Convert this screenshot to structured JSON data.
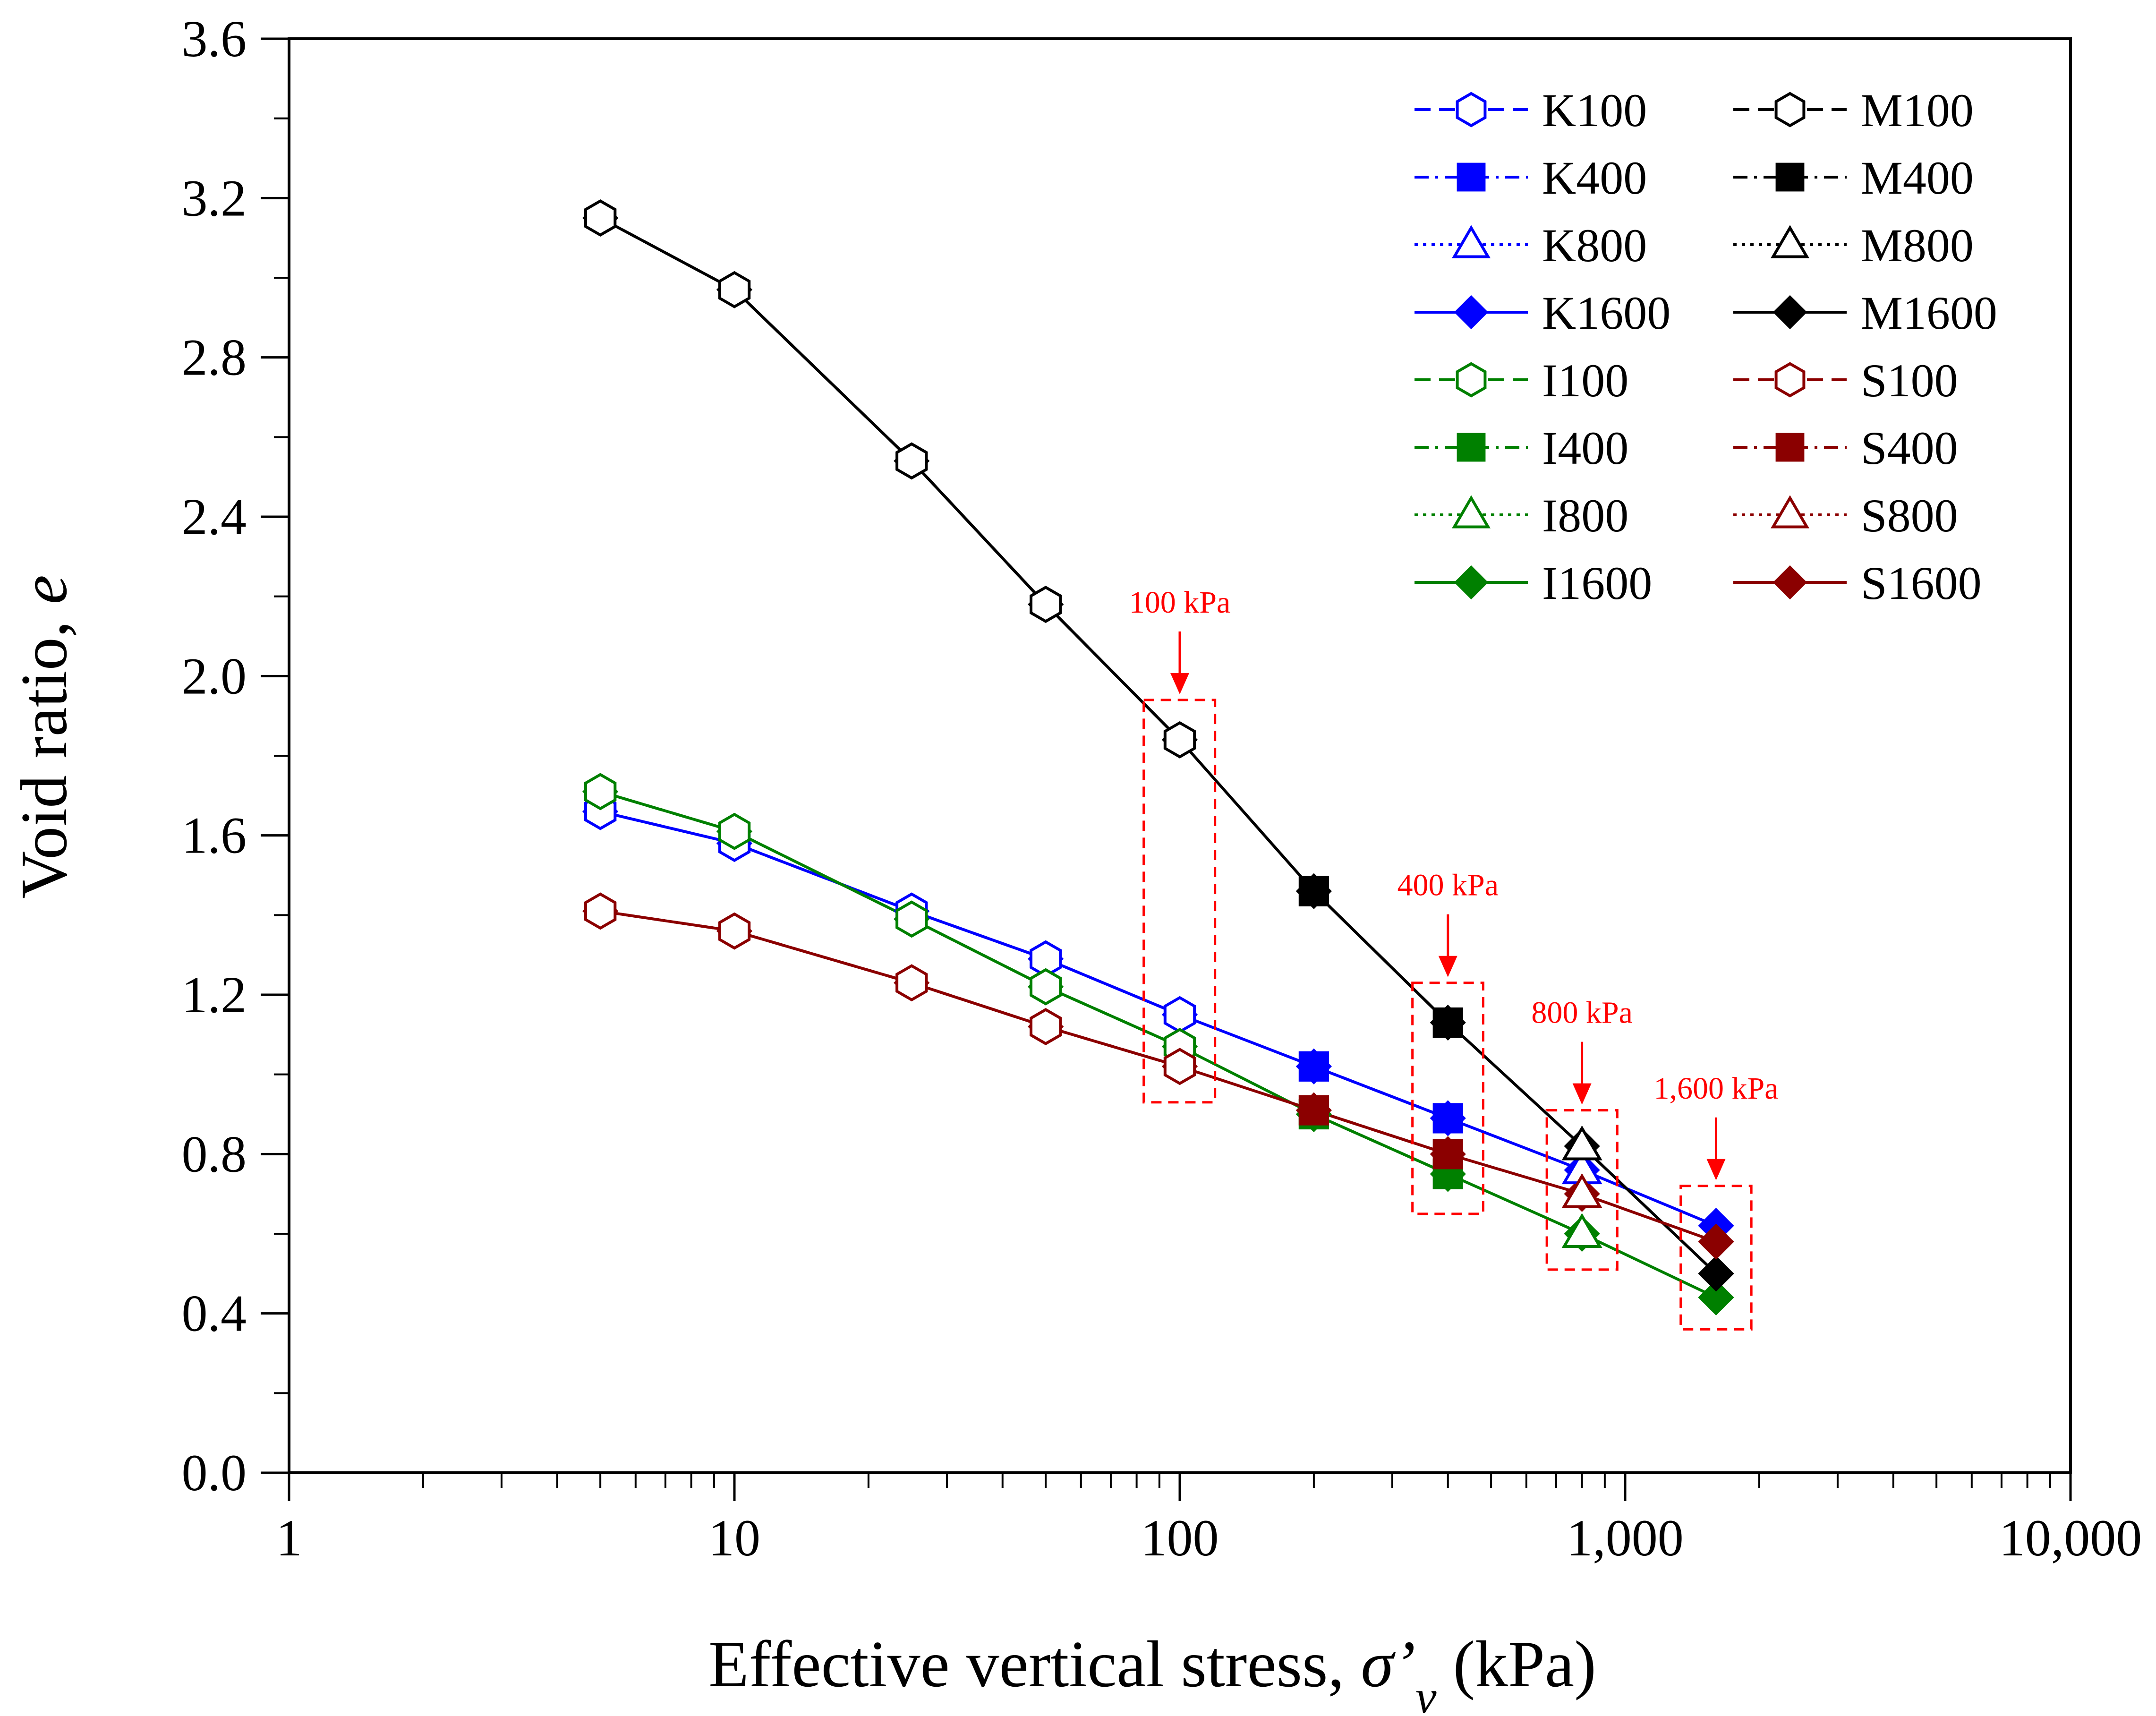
{
  "chart_data": {
    "type": "line",
    "title": "",
    "xlabel_main": "Effective vertical stress, ",
    "xlabel_symbol": "σ’",
    "xlabel_sub": "v",
    "xlabel_unit": " (kPa)",
    "ylabel_main": "Void ratio, ",
    "ylabel_symbol": "e",
    "xscale": "log",
    "xlim": [
      1,
      10000
    ],
    "ylim": [
      0.0,
      3.6
    ],
    "x_tick_values": [
      1,
      10,
      100,
      1000,
      10000
    ],
    "x_tick_labels": [
      "1",
      "10",
      "100",
      "1,000",
      "10,000"
    ],
    "y_tick_values": [
      0.0,
      0.4,
      0.8,
      1.2,
      1.6,
      2.0,
      2.4,
      2.8,
      3.2,
      3.6
    ],
    "y_tick_labels": [
      "0.0",
      "0.4",
      "0.8",
      "1.2",
      "1.6",
      "2.0",
      "2.4",
      "2.8",
      "3.2",
      "3.6"
    ],
    "grid": false,
    "legend_position": "top-right",
    "series": [
      {
        "name": "K100",
        "color": "#0000ff",
        "dash": "dash",
        "marker": "hexagon-open",
        "x": [
          5,
          10,
          25,
          50,
          100
        ],
        "y": [
          1.66,
          1.58,
          1.41,
          1.29,
          1.15
        ]
      },
      {
        "name": "K400",
        "color": "#0000ff",
        "dash": "dashdot",
        "marker": "square-filled",
        "x": [
          200,
          400
        ],
        "y": [
          1.02,
          0.89
        ]
      },
      {
        "name": "K800",
        "color": "#0000ff",
        "dash": "dot",
        "marker": "triangle-open",
        "x": [
          800
        ],
        "y": [
          0.76
        ]
      },
      {
        "name": "K1600",
        "color": "#0000ff",
        "dash": "solid",
        "marker": "diamond-filled",
        "x": [
          5,
          10,
          25,
          50,
          100,
          200,
          400,
          800,
          1600
        ],
        "y": [
          1.66,
          1.58,
          1.41,
          1.29,
          1.15,
          1.02,
          0.89,
          0.76,
          0.62
        ]
      },
      {
        "name": "I100",
        "color": "#008000",
        "dash": "dash",
        "marker": "hexagon-open",
        "x": [
          5,
          10,
          25,
          50,
          100
        ],
        "y": [
          1.71,
          1.61,
          1.39,
          1.22,
          1.07
        ]
      },
      {
        "name": "I400",
        "color": "#008000",
        "dash": "dashdot",
        "marker": "square-filled",
        "x": [
          200,
          400
        ],
        "y": [
          0.9,
          0.75
        ]
      },
      {
        "name": "I800",
        "color": "#008000",
        "dash": "dot",
        "marker": "triangle-open",
        "x": [
          800
        ],
        "y": [
          0.6
        ]
      },
      {
        "name": "I1600",
        "color": "#008000",
        "dash": "solid",
        "marker": "diamond-filled",
        "x": [
          5,
          10,
          25,
          50,
          100,
          200,
          400,
          800,
          1600
        ],
        "y": [
          1.71,
          1.61,
          1.39,
          1.22,
          1.07,
          0.9,
          0.75,
          0.6,
          0.44
        ]
      },
      {
        "name": "M100",
        "color": "#000000",
        "dash": "dash",
        "marker": "hexagon-open",
        "x": [
          5,
          10,
          25,
          50,
          100
        ],
        "y": [
          3.15,
          2.97,
          2.54,
          2.18,
          1.84
        ]
      },
      {
        "name": "M400",
        "color": "#000000",
        "dash": "dashdot",
        "marker": "square-filled",
        "x": [
          200,
          400
        ],
        "y": [
          1.46,
          1.13
        ]
      },
      {
        "name": "M800",
        "color": "#000000",
        "dash": "dot",
        "marker": "triangle-open",
        "x": [
          800
        ],
        "y": [
          0.82
        ]
      },
      {
        "name": "M1600",
        "color": "#000000",
        "dash": "solid",
        "marker": "diamond-filled",
        "x": [
          5,
          10,
          25,
          50,
          100,
          200,
          400,
          800,
          1600
        ],
        "y": [
          3.15,
          2.97,
          2.54,
          2.18,
          1.84,
          1.46,
          1.13,
          0.82,
          0.5
        ]
      },
      {
        "name": "S100",
        "color": "#8b0000",
        "dash": "dash",
        "marker": "hexagon-open",
        "x": [
          5,
          10,
          25,
          50,
          100
        ],
        "y": [
          1.41,
          1.36,
          1.23,
          1.12,
          1.02
        ]
      },
      {
        "name": "S400",
        "color": "#8b0000",
        "dash": "dashdot",
        "marker": "square-filled",
        "x": [
          200,
          400
        ],
        "y": [
          0.91,
          0.8
        ]
      },
      {
        "name": "S800",
        "color": "#8b0000",
        "dash": "dot",
        "marker": "triangle-open",
        "x": [
          800
        ],
        "y": [
          0.7
        ]
      },
      {
        "name": "S1600",
        "color": "#8b0000",
        "dash": "solid",
        "marker": "diamond-filled",
        "x": [
          5,
          10,
          25,
          50,
          100,
          200,
          400,
          800,
          1600
        ],
        "y": [
          1.41,
          1.36,
          1.23,
          1.12,
          1.02,
          0.91,
          0.8,
          0.7,
          0.58
        ]
      }
    ],
    "annotations": [
      {
        "label": "100 kPa",
        "stress": 100,
        "box_x_range": [
          83,
          120
        ],
        "box_y_range": [
          0.93,
          1.94
        ],
        "color": "#ff0000"
      },
      {
        "label": "400 kPa",
        "stress": 400,
        "box_x_range": [
          333,
          480
        ],
        "box_y_range": [
          0.65,
          1.23
        ],
        "color": "#ff0000"
      },
      {
        "label": "800 kPa",
        "stress": 800,
        "box_x_range": [
          667,
          960
        ],
        "box_y_range": [
          0.51,
          0.91
        ],
        "color": "#ff0000"
      },
      {
        "label": "1,600 kPa",
        "stress": 1600,
        "box_x_range": [
          1333,
          1920
        ],
        "box_y_range": [
          0.36,
          0.72
        ],
        "color": "#ff0000"
      }
    ]
  }
}
